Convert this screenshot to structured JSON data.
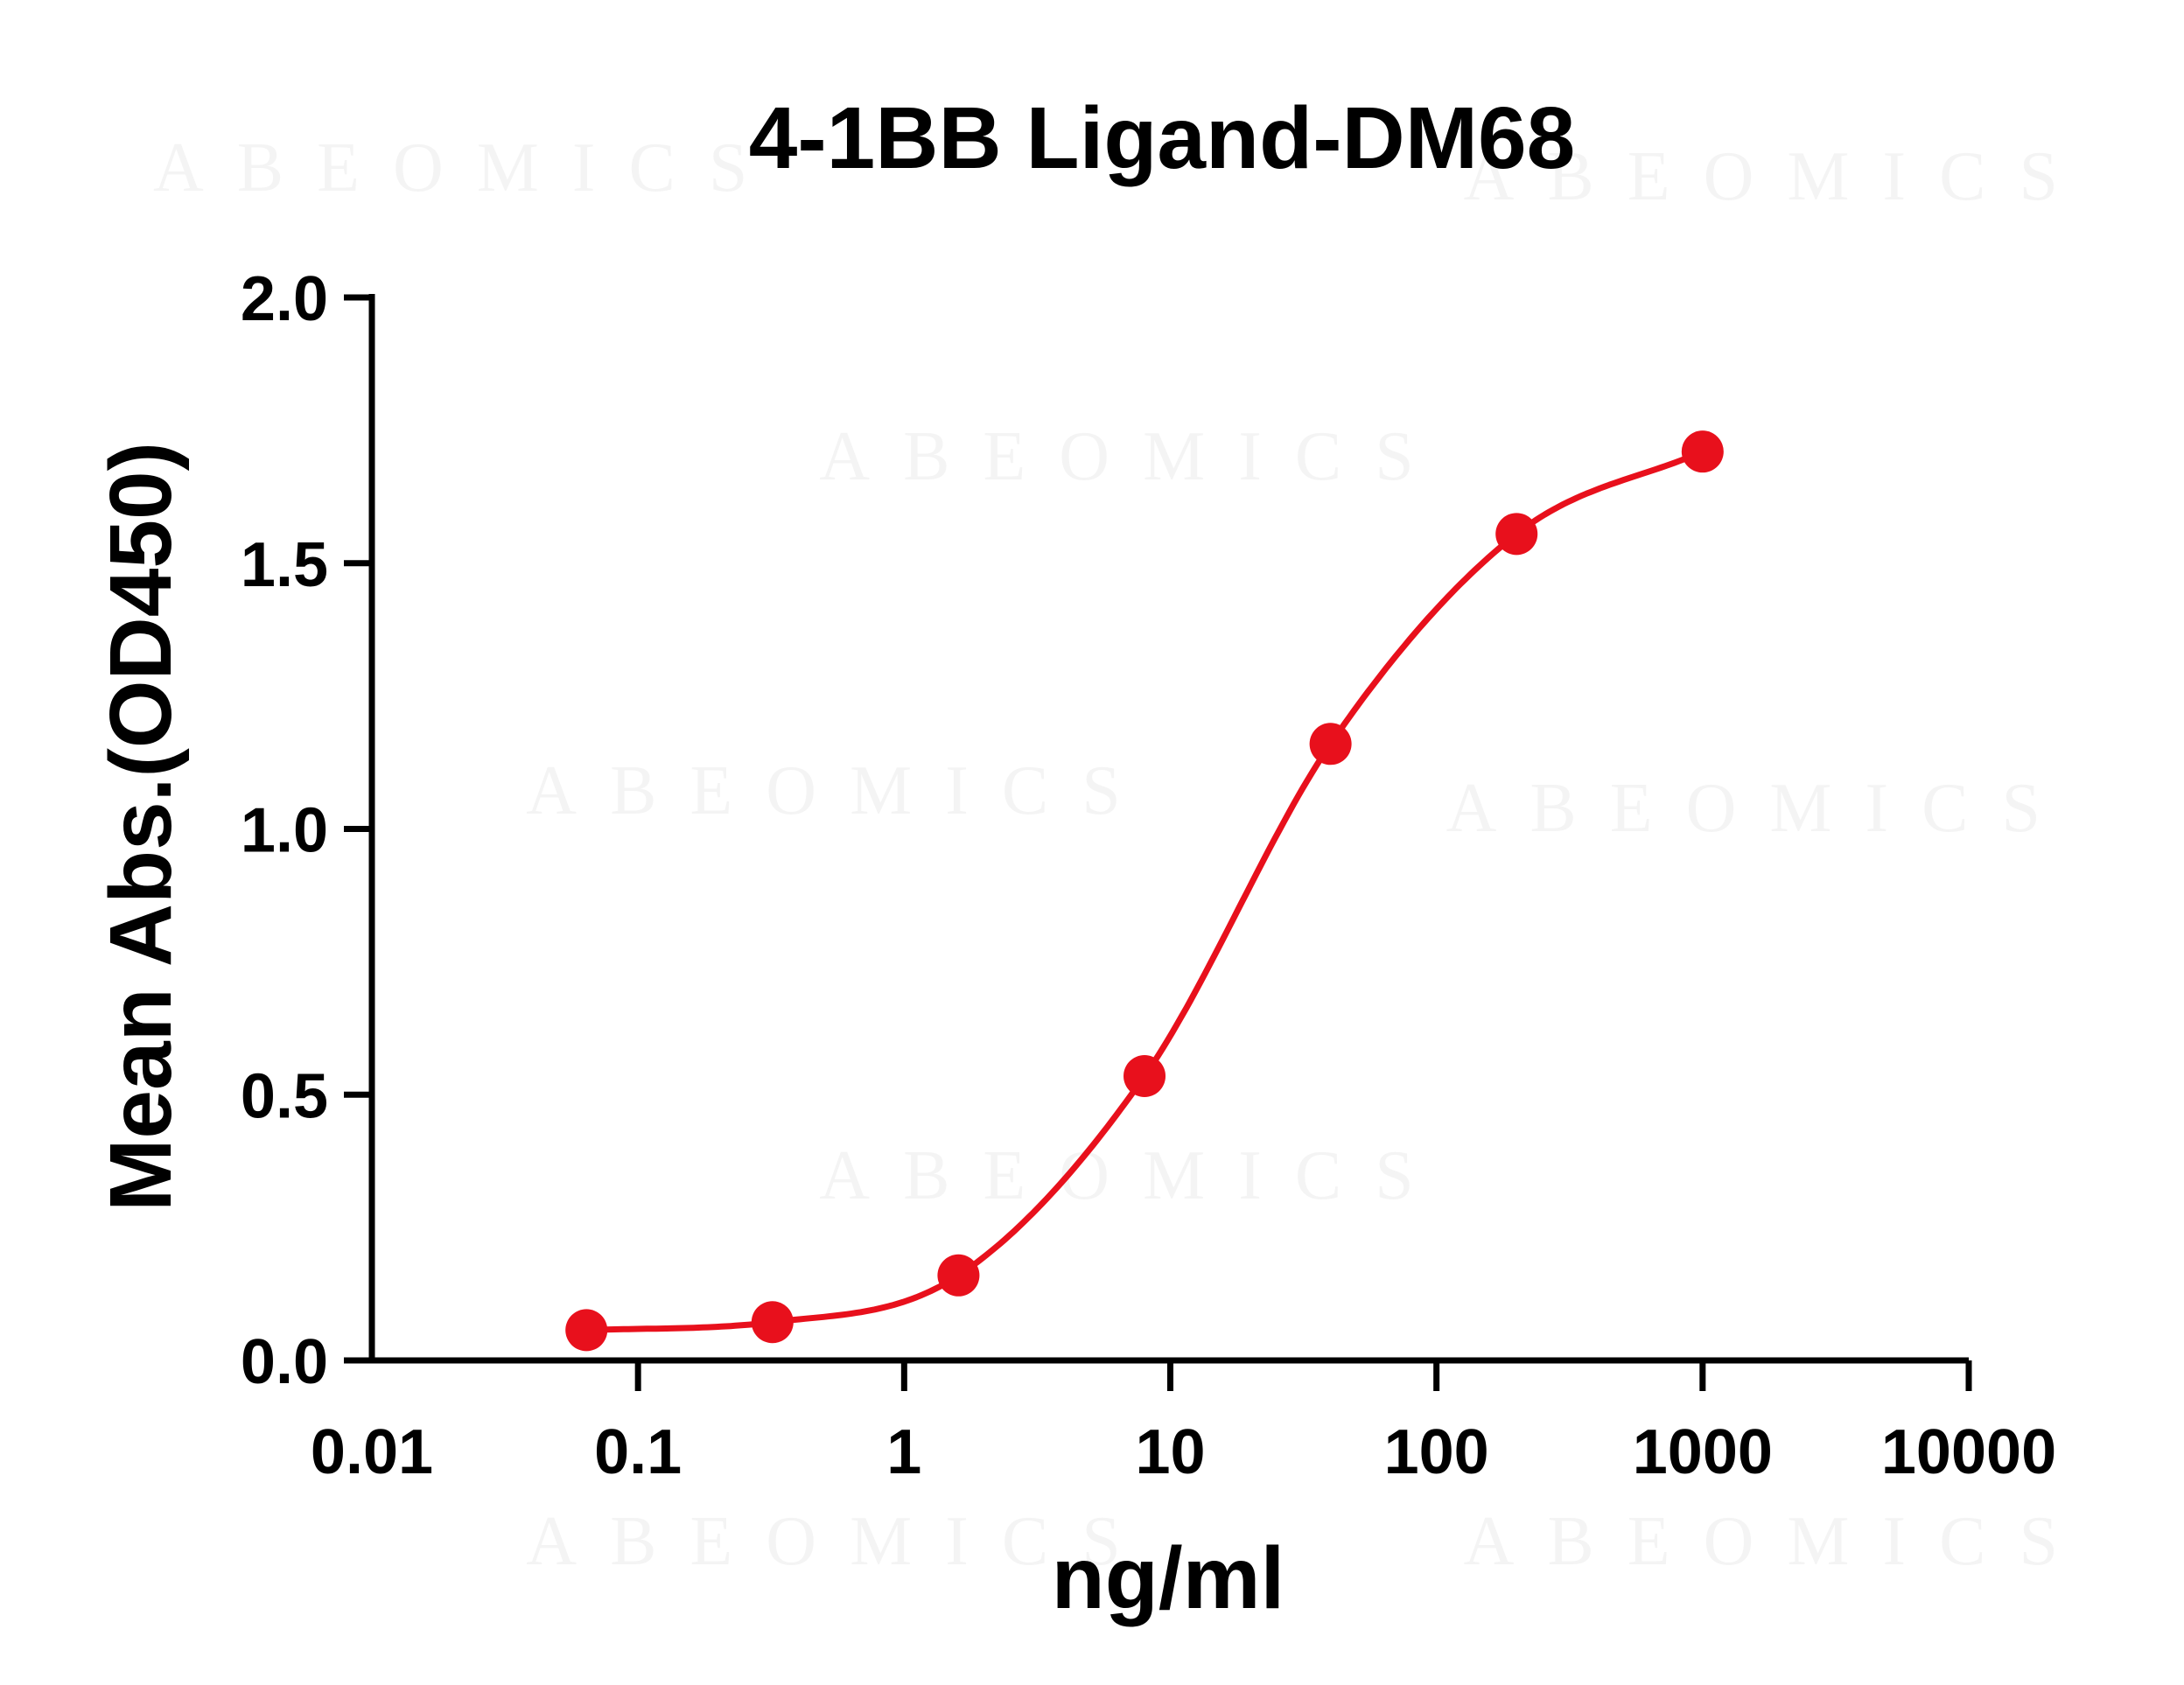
{
  "chart_data": {
    "type": "scatter",
    "title": "4-1BB Ligand-DM68",
    "xlabel": "ng/ml",
    "ylabel": "Mean Abs.(OD450)",
    "xscale": "log",
    "xlim": [
      0.01,
      10000
    ],
    "ylim": [
      0,
      2.0
    ],
    "x_ticks": [
      0.01,
      0.1,
      1,
      10,
      100,
      1000,
      10000
    ],
    "x_tick_labels": [
      "0.01",
      "0.1",
      "1",
      "10",
      "100",
      "1000",
      "10000"
    ],
    "y_ticks": [
      0,
      0.5,
      1.0,
      1.5,
      2.0
    ],
    "y_tick_labels": [
      "0.0",
      "0.5",
      "1.0",
      "1.5",
      "2.0"
    ],
    "grid": false,
    "legend": "none",
    "series": [
      {
        "color": "#e8101c",
        "marker": "circle",
        "fit": "four-parameter logistic curve",
        "x": [
          0.064,
          0.32,
          1.6,
          8,
          40,
          200,
          1000
        ],
        "y": [
          0.057,
          0.072,
          0.16,
          0.535,
          1.16,
          1.555,
          1.71
        ]
      }
    ]
  },
  "watermark": {
    "text": "ABEOMICS",
    "color": "#000000"
  },
  "colors": {
    "axis": "#000000",
    "series": "#e8101c",
    "background": "#ffffff"
  }
}
